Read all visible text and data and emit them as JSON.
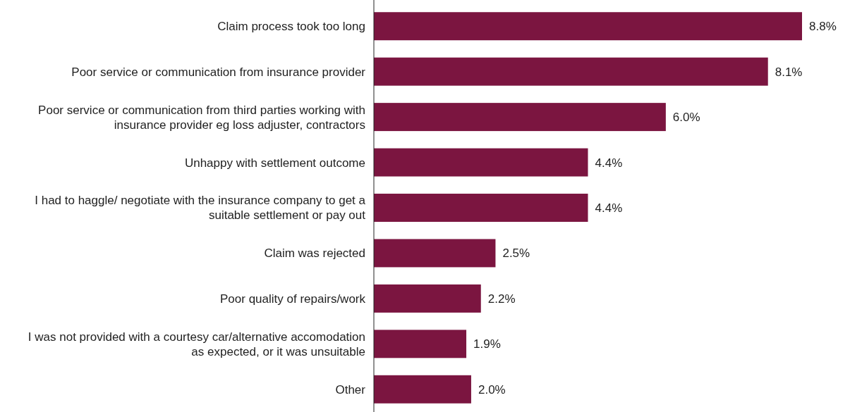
{
  "chart_data": {
    "type": "bar",
    "orientation": "horizontal",
    "categories": [
      "Claim process took too long",
      "Poor service or communication from insurance provider",
      "Poor service or communication from third parties working with insurance provider eg loss adjuster, contractors",
      "Unhappy with settlement outcome",
      "I had to haggle/ negotiate with the insurance company to get a suitable settlement or pay out",
      "Claim was rejected",
      "Poor quality of repairs/work",
      "I was not provided with a courtesy car/alternative accomodation as expected, or it was unsuitable",
      "Other"
    ],
    "values": [
      8.8,
      8.1,
      6.0,
      4.4,
      4.4,
      2.5,
      2.2,
      1.9,
      2.0
    ],
    "value_labels": [
      "8.8%",
      "8.1%",
      "6.0%",
      "4.4%",
      "4.4%",
      "2.5%",
      "2.2%",
      "1.9%",
      "2.0%"
    ],
    "color": "#7b1540"
  }
}
